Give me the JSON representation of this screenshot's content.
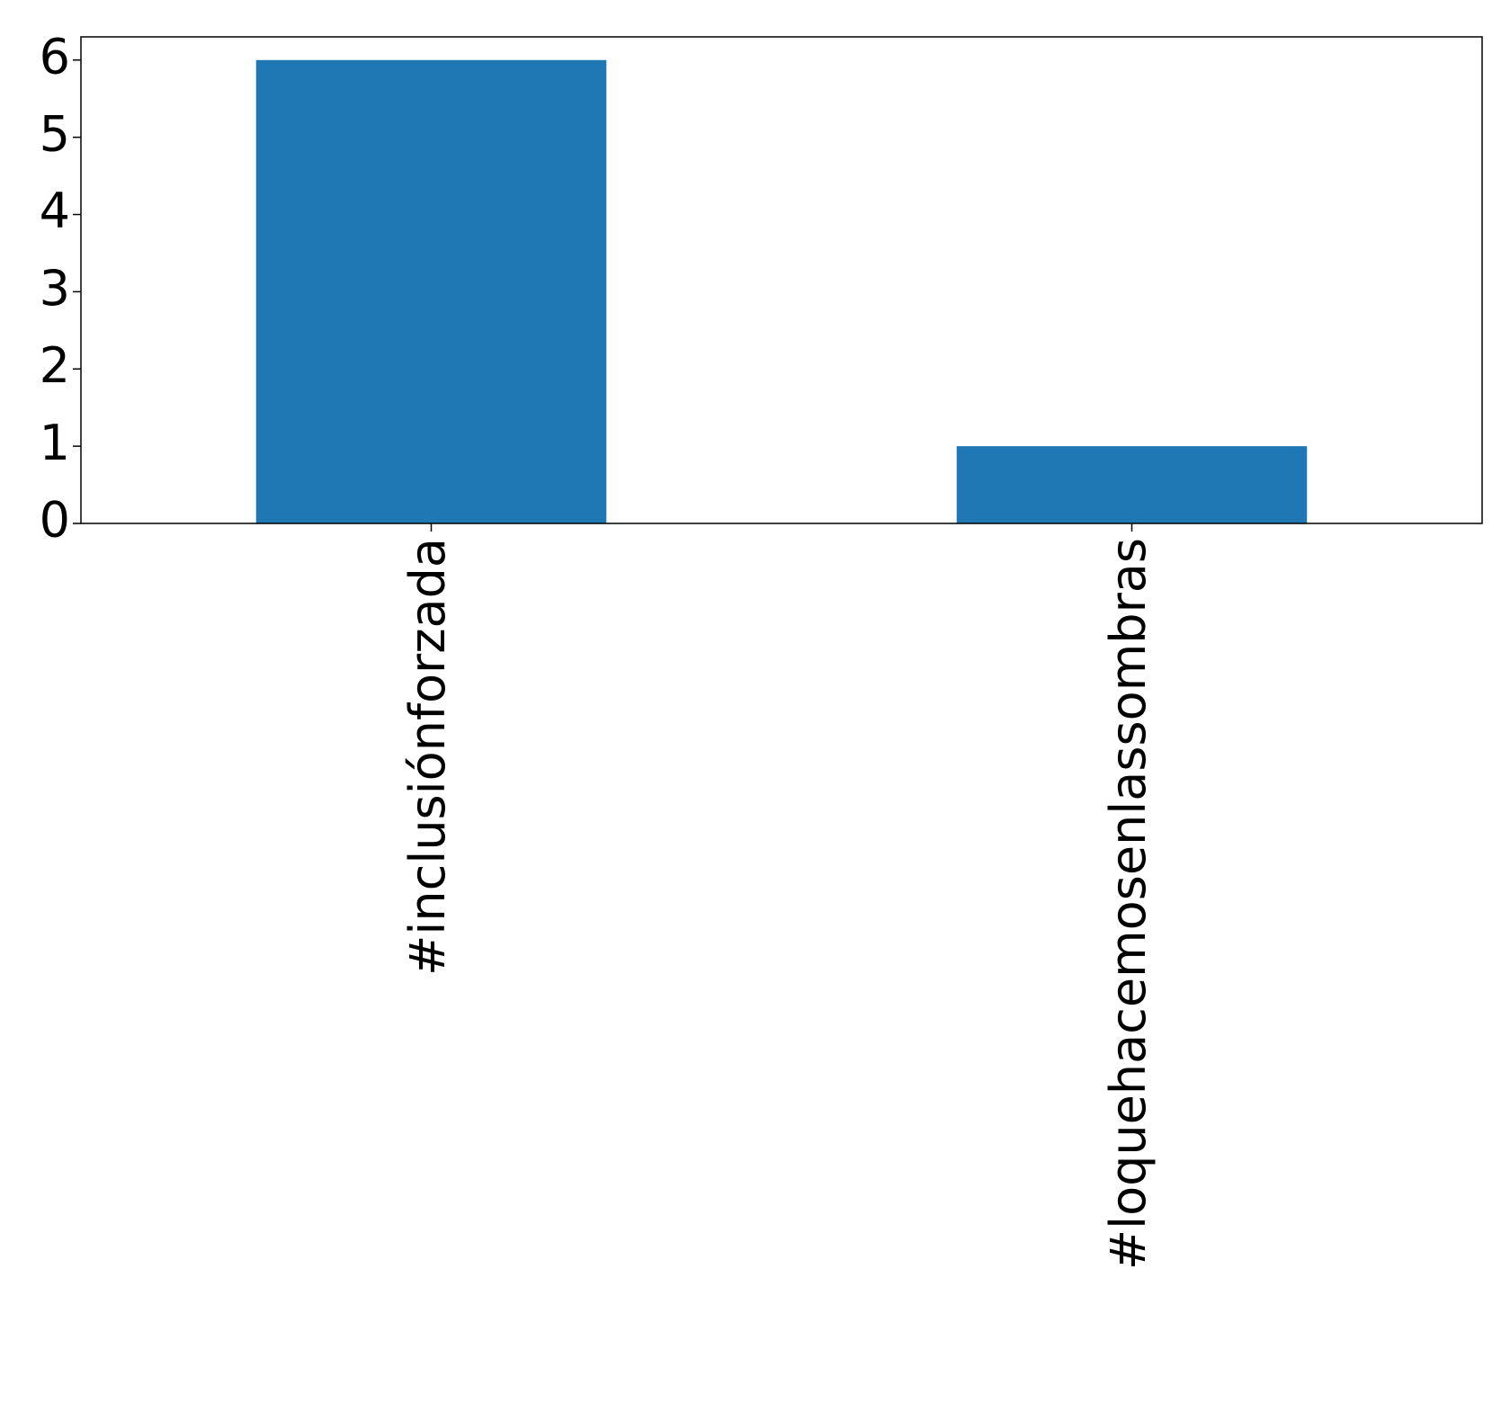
{
  "chart_data": {
    "type": "bar",
    "categories": [
      "#inclusiónforzada",
      "#loquehacemosenlassombras"
    ],
    "values": [
      6,
      1
    ],
    "color": "#1f77b4",
    "ylim": [
      0,
      6.3
    ],
    "yticks": [
      0,
      1,
      2,
      3,
      4,
      5,
      6
    ]
  }
}
